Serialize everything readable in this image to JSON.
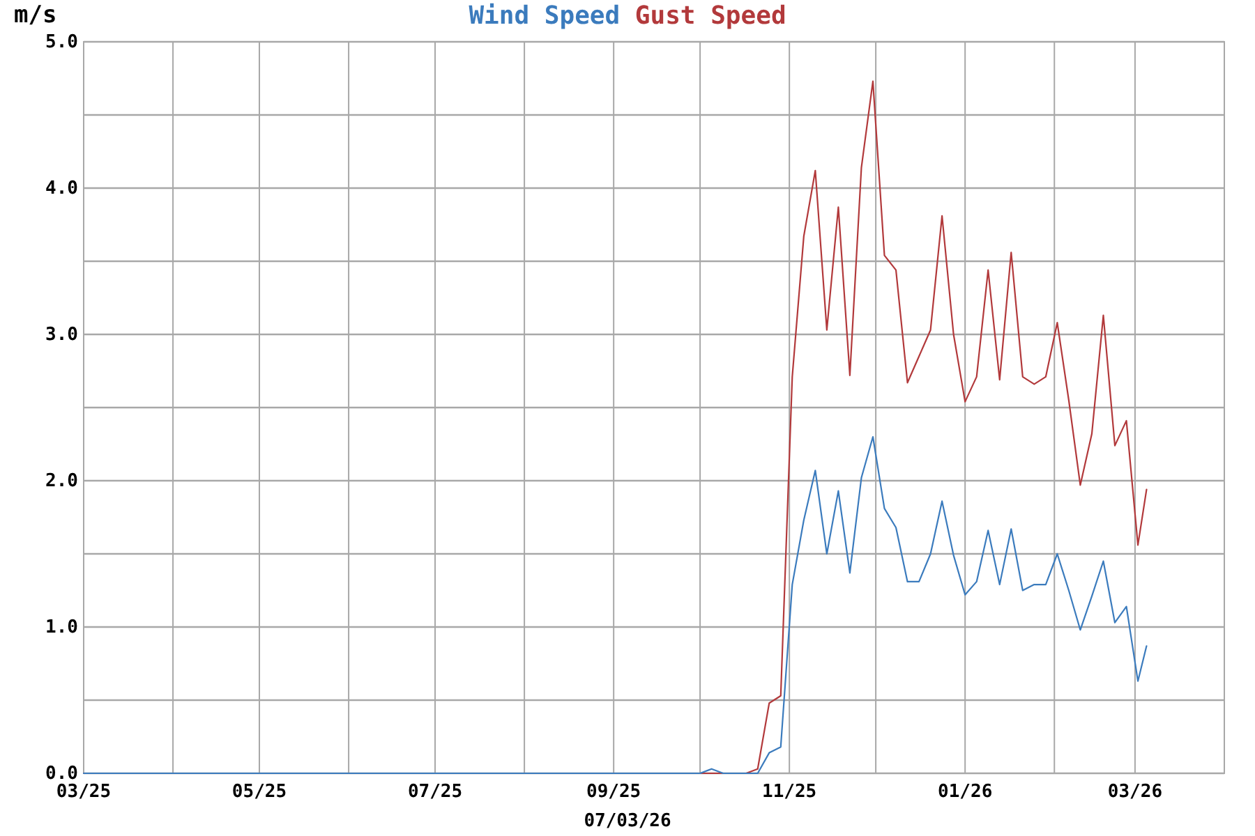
{
  "chart_data": {
    "type": "line",
    "legend": "top",
    "grid": true,
    "xlabel": "07/03/26",
    "ylabel": "m/s",
    "x": [
      "2025-03-01",
      "2025-10-01",
      "2025-10-05",
      "2025-10-09",
      "2025-10-13",
      "2025-10-17",
      "2025-10-21",
      "2025-10-25",
      "2025-10-29",
      "2025-11-02",
      "2025-11-06",
      "2025-11-10",
      "2025-11-14",
      "2025-11-18",
      "2025-11-22",
      "2025-11-26",
      "2025-11-30",
      "2025-12-04",
      "2025-12-08",
      "2025-12-12",
      "2025-12-16",
      "2025-12-20",
      "2025-12-24",
      "2025-12-28",
      "2026-01-01",
      "2026-01-05",
      "2026-01-09",
      "2026-01-13",
      "2026-01-17",
      "2026-01-21",
      "2026-01-25",
      "2026-01-29",
      "2026-02-02",
      "2026-02-06",
      "2026-02-10",
      "2026-02-14",
      "2026-02-18",
      "2026-02-22",
      "2026-02-26",
      "2026-03-02",
      "2026-03-05"
    ],
    "series": [
      {
        "name": "Wind Speed",
        "color": "#3b7bbd",
        "values": [
          0,
          0,
          0.03,
          0,
          0,
          0,
          0,
          0.14,
          0.18,
          1.29,
          1.73,
          2.07,
          1.5,
          1.93,
          1.37,
          2.02,
          2.3,
          1.81,
          1.68,
          1.31,
          1.31,
          1.5,
          1.86,
          1.49,
          1.22,
          1.31,
          1.66,
          1.29,
          1.67,
          1.25,
          1.29,
          1.29,
          1.5,
          1.25,
          0.98,
          1.21,
          1.45,
          1.03,
          1.14,
          0.63,
          0.87
        ]
      },
      {
        "name": "Gust Speed",
        "color": "#b2393b",
        "values": [
          0,
          0,
          0,
          0,
          0,
          0,
          0.03,
          0.48,
          0.53,
          2.71,
          3.67,
          4.12,
          3.03,
          3.87,
          2.72,
          4.14,
          4.73,
          3.54,
          3.44,
          2.67,
          2.85,
          3.03,
          3.81,
          3.0,
          2.54,
          2.71,
          3.44,
          2.69,
          3.56,
          2.71,
          2.66,
          2.71,
          3.08,
          2.55,
          1.97,
          2.32,
          3.13,
          2.24,
          2.41,
          1.56,
          1.94
        ]
      }
    ],
    "xlim": [
      "2025-03-01",
      "2026-04-01"
    ],
    "xticks": [
      {
        "value": "2025-03",
        "label": "03/25"
      },
      {
        "value": "2025-04",
        "label": null
      },
      {
        "value": "2025-05",
        "label": "05/25"
      },
      {
        "value": "2025-06",
        "label": null
      },
      {
        "value": "2025-07",
        "label": "07/25"
      },
      {
        "value": "2025-08",
        "label": null
      },
      {
        "value": "2025-09",
        "label": "09/25"
      },
      {
        "value": "2025-10",
        "label": null
      },
      {
        "value": "2025-11",
        "label": "11/25"
      },
      {
        "value": "2025-12",
        "label": null
      },
      {
        "value": "2026-01",
        "label": "01/26"
      },
      {
        "value": "2026-02",
        "label": null
      },
      {
        "value": "2026-03",
        "label": "03/26"
      },
      {
        "value": "2026-04",
        "label": null
      }
    ],
    "ylim": [
      0,
      5
    ],
    "yticks": [
      {
        "value": 0,
        "label": "0.0"
      },
      {
        "value": 0.5,
        "label": null
      },
      {
        "value": 1,
        "label": "1.0"
      },
      {
        "value": 1.5,
        "label": null
      },
      {
        "value": 2,
        "label": "2.0"
      },
      {
        "value": 2.5,
        "label": null
      },
      {
        "value": 3,
        "label": "3.0"
      },
      {
        "value": 3.5,
        "label": null
      },
      {
        "value": 4,
        "label": "4.0"
      },
      {
        "value": 4.5,
        "label": null
      },
      {
        "value": 5,
        "label": "5.0"
      }
    ]
  }
}
